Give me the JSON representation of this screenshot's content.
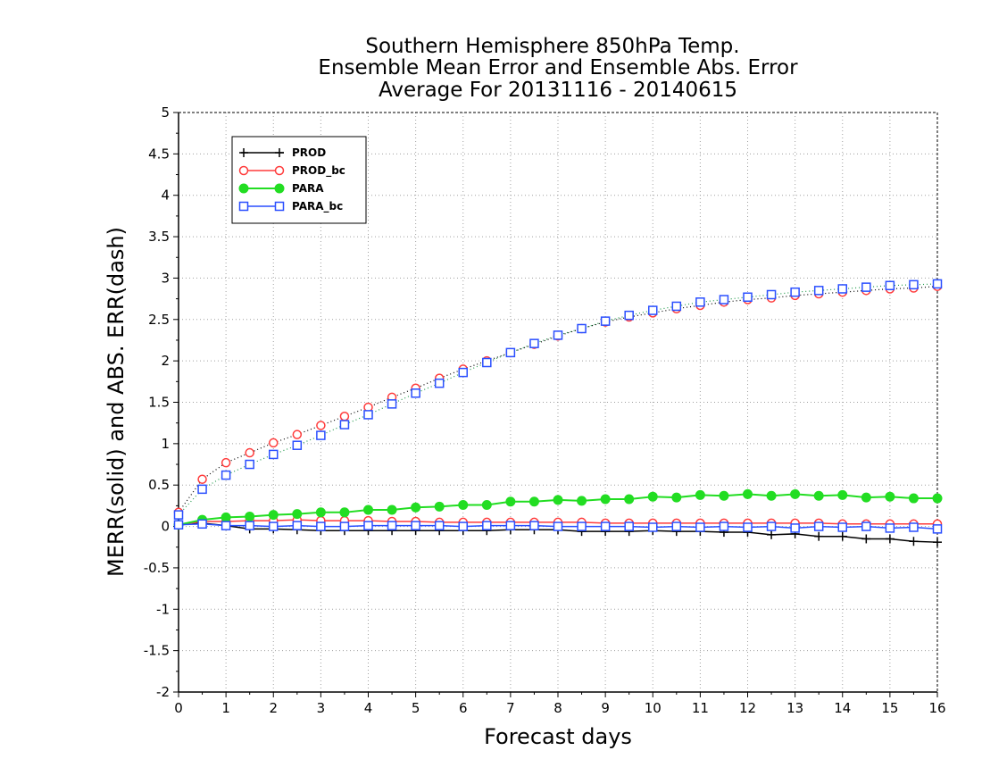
{
  "chart_data": {
    "type": "line",
    "title_lines": [
      "Southern Hemisphere 850hPa Temp.",
      "Ensemble Mean Error and Ensemble Abs. Error",
      "Average For 20131116 - 20140615"
    ],
    "xlabel": "Forecast days",
    "ylabel": "MERR(solid) and ABS. ERR(dash)",
    "xlim": [
      0,
      16
    ],
    "ylim": [
      -2,
      5
    ],
    "x_ticks": [
      "0",
      "1",
      "2",
      "3",
      "4",
      "5",
      "6",
      "7",
      "8",
      "9",
      "10",
      "11",
      "12",
      "13",
      "14",
      "15",
      "16"
    ],
    "y_ticks": [
      "-2",
      "-1.5",
      "-1",
      "-0.5",
      "0",
      "0.5",
      "1",
      "1.5",
      "2",
      "2.5",
      "3",
      "3.5",
      "4",
      "4.5",
      "5"
    ],
    "grid": true,
    "legend_position": "top-left",
    "x": [
      0,
      0.5,
      1,
      1.5,
      2,
      2.5,
      3,
      3.5,
      4,
      4.5,
      5,
      5.5,
      6,
      6.5,
      7,
      7.5,
      8,
      8.5,
      9,
      9.5,
      10,
      10.5,
      11,
      11.5,
      12,
      12.5,
      13,
      13.5,
      14,
      14.5,
      15,
      15.5,
      16
    ],
    "series": [
      {
        "name": "PROD",
        "color": "#000000",
        "marker": "plus",
        "merr": [
          0.02,
          0.04,
          0.01,
          -0.03,
          -0.03,
          -0.04,
          -0.05,
          -0.05,
          -0.05,
          -0.05,
          -0.05,
          -0.05,
          -0.05,
          -0.05,
          -0.04,
          -0.04,
          -0.04,
          -0.06,
          -0.06,
          -0.06,
          -0.05,
          -0.06,
          -0.06,
          -0.07,
          -0.07,
          -0.1,
          -0.09,
          -0.12,
          -0.12,
          -0.15,
          -0.15,
          -0.18,
          -0.19
        ],
        "abs_err": null
      },
      {
        "name": "PROD_bc",
        "color": "#ff3b3b",
        "marker": "open-circle",
        "merr": [
          0.02,
          0.06,
          0.06,
          0.07,
          0.07,
          0.08,
          0.07,
          0.07,
          0.07,
          0.06,
          0.06,
          0.05,
          0.05,
          0.05,
          0.05,
          0.05,
          0.05,
          0.05,
          0.04,
          0.04,
          0.04,
          0.04,
          0.04,
          0.04,
          0.04,
          0.04,
          0.04,
          0.04,
          0.03,
          0.03,
          0.03,
          0.03,
          0.03
        ],
        "abs_err": [
          0.17,
          0.57,
          0.77,
          0.89,
          1.01,
          1.11,
          1.22,
          1.33,
          1.44,
          1.56,
          1.67,
          1.79,
          1.9,
          2.0,
          2.1,
          2.2,
          2.3,
          2.39,
          2.47,
          2.53,
          2.58,
          2.63,
          2.67,
          2.71,
          2.74,
          2.76,
          2.79,
          2.81,
          2.83,
          2.85,
          2.87,
          2.88,
          2.9
        ]
      },
      {
        "name": "PARA",
        "color": "#22dd22",
        "marker": "filled-circle",
        "merr": [
          0.02,
          0.08,
          0.11,
          0.12,
          0.14,
          0.15,
          0.17,
          0.17,
          0.2,
          0.2,
          0.23,
          0.24,
          0.26,
          0.26,
          0.3,
          0.3,
          0.32,
          0.31,
          0.33,
          0.33,
          0.36,
          0.35,
          0.38,
          0.37,
          0.39,
          0.37,
          0.39,
          0.37,
          0.38,
          0.35,
          0.36,
          0.34,
          0.34
        ]
      },
      {
        "name": "PARA_bc",
        "color": "#2a4fff",
        "marker": "open-square",
        "merr": [
          0.02,
          0.03,
          0.01,
          0.01,
          0.0,
          0.01,
          0.0,
          0.0,
          0.01,
          0.01,
          0.01,
          0.01,
          0.0,
          0.01,
          0.01,
          0.01,
          0.0,
          0.0,
          0.0,
          0.0,
          -0.01,
          0.0,
          -0.01,
          0.0,
          -0.01,
          0.0,
          -0.02,
          0.0,
          -0.01,
          0.0,
          -0.02,
          -0.01,
          -0.03
        ],
        "abs_err": [
          0.14,
          0.45,
          0.62,
          0.75,
          0.87,
          0.98,
          1.1,
          1.23,
          1.35,
          1.48,
          1.61,
          1.73,
          1.86,
          1.98,
          2.1,
          2.21,
          2.31,
          2.39,
          2.48,
          2.55,
          2.61,
          2.66,
          2.71,
          2.74,
          2.77,
          2.8,
          2.83,
          2.85,
          2.87,
          2.89,
          2.91,
          2.92,
          2.93
        ]
      }
    ]
  }
}
